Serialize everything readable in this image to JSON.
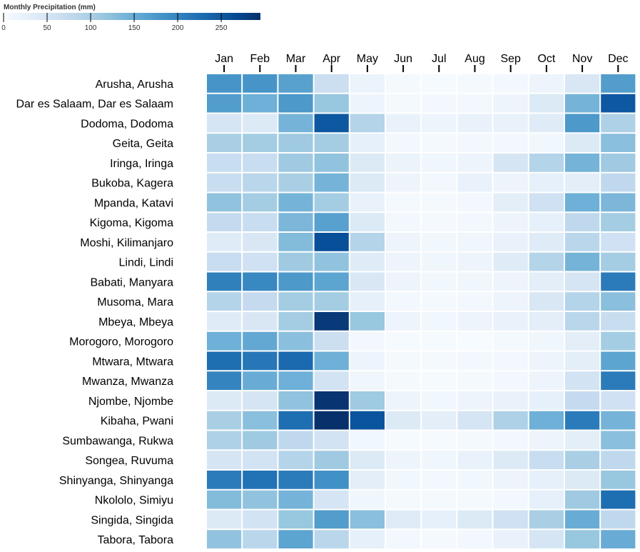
{
  "chart_data": {
    "type": "heatmap",
    "legend": {
      "title": "Monthly Precipitation (mm)",
      "domain": [
        0,
        295
      ],
      "ticks": [
        0,
        50,
        100,
        150,
        200,
        250
      ]
    },
    "months": [
      "Jan",
      "Feb",
      "Mar",
      "Apr",
      "May",
      "Jun",
      "Jul",
      "Aug",
      "Sep",
      "Oct",
      "Nov",
      "Dec"
    ],
    "rows": [
      {
        "label": "Arusha, Arusha",
        "values": [
          180,
          180,
          165,
          65,
          18,
          5,
          3,
          4,
          6,
          15,
          45,
          170
        ]
      },
      {
        "label": "Dar es Salaam, Dar es Salaam",
        "values": [
          170,
          145,
          175,
          115,
          15,
          5,
          6,
          8,
          15,
          40,
          140,
          250
        ]
      },
      {
        "label": "Dodoma, Dodoma",
        "values": [
          50,
          40,
          140,
          250,
          90,
          20,
          15,
          20,
          20,
          35,
          175,
          95
        ]
      },
      {
        "label": "Geita, Geita",
        "values": [
          100,
          105,
          110,
          105,
          25,
          8,
          5,
          7,
          8,
          10,
          40,
          125
        ]
      },
      {
        "label": "Iringa, Iringa",
        "values": [
          70,
          70,
          110,
          120,
          40,
          18,
          12,
          15,
          50,
          90,
          140,
          110
        ]
      },
      {
        "label": "Bukoba, Kagera",
        "values": [
          70,
          85,
          100,
          140,
          40,
          15,
          8,
          20,
          15,
          25,
          30,
          80
        ]
      },
      {
        "label": "Mpanda, Katavi",
        "values": [
          120,
          105,
          140,
          105,
          20,
          5,
          5,
          8,
          30,
          60,
          145,
          135
        ]
      },
      {
        "label": "Kigoma, Kigoma",
        "values": [
          75,
          70,
          135,
          165,
          40,
          8,
          5,
          8,
          15,
          25,
          80,
          105
        ]
      },
      {
        "label": "Moshi, Kilimanjaro",
        "values": [
          35,
          45,
          130,
          260,
          90,
          15,
          10,
          12,
          20,
          35,
          85,
          60
        ]
      },
      {
        "label": "Lindi, Lindi",
        "values": [
          70,
          60,
          110,
          120,
          35,
          15,
          12,
          15,
          35,
          90,
          140,
          105
        ]
      },
      {
        "label": "Babati, Manyara",
        "values": [
          205,
          195,
          175,
          160,
          45,
          15,
          10,
          12,
          15,
          30,
          50,
          210
        ]
      },
      {
        "label": "Musoma, Mara",
        "values": [
          90,
          75,
          105,
          105,
          25,
          8,
          5,
          8,
          15,
          45,
          90,
          125
        ]
      },
      {
        "label": "Mbeya, Mbeya",
        "values": [
          35,
          45,
          105,
          285,
          115,
          15,
          10,
          15,
          20,
          30,
          85,
          70
        ]
      },
      {
        "label": "Morogoro, Morogoro",
        "values": [
          145,
          155,
          125,
          65,
          8,
          3,
          3,
          1,
          5,
          12,
          30,
          105
        ]
      },
      {
        "label": "Mtwara, Mtwara",
        "values": [
          225,
          215,
          230,
          145,
          15,
          5,
          5,
          8,
          8,
          15,
          30,
          160
        ]
      },
      {
        "label": "Mwanza, Mwanza",
        "values": [
          200,
          150,
          145,
          55,
          12,
          5,
          3,
          5,
          8,
          15,
          55,
          210
        ]
      },
      {
        "label": "Njombe, Njombe",
        "values": [
          40,
          50,
          120,
          290,
          110,
          15,
          10,
          15,
          20,
          25,
          75,
          60
        ]
      },
      {
        "label": "Kibaha, Pwani",
        "values": [
          100,
          125,
          225,
          300,
          255,
          40,
          30,
          50,
          95,
          145,
          210,
          140
        ]
      },
      {
        "label": "Sumbawanga, Rukwa",
        "values": [
          95,
          110,
          80,
          55,
          10,
          3,
          3,
          5,
          8,
          15,
          30,
          125
        ]
      },
      {
        "label": "Songea, Ruvuma",
        "values": [
          50,
          55,
          90,
          110,
          40,
          15,
          12,
          20,
          40,
          70,
          100,
          80
        ]
      },
      {
        "label": "Shinyanga, Shinyanga",
        "values": [
          210,
          220,
          210,
          185,
          30,
          10,
          8,
          10,
          15,
          25,
          40,
          115
        ]
      },
      {
        "label": "Nkololo, Simiyu",
        "values": [
          130,
          120,
          140,
          50,
          12,
          5,
          5,
          5,
          8,
          25,
          110,
          225
        ]
      },
      {
        "label": "Singida, Singida",
        "values": [
          40,
          55,
          115,
          170,
          125,
          35,
          25,
          40,
          60,
          100,
          150,
          80
        ]
      },
      {
        "label": "Tabora, Tabora",
        "values": [
          120,
          85,
          160,
          85,
          25,
          8,
          5,
          8,
          20,
          50,
          115,
          150
        ]
      }
    ]
  }
}
